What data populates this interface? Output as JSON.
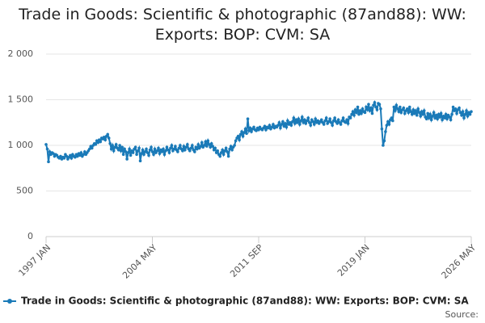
{
  "chart_data": {
    "type": "line",
    "title": "Trade in Goods: Scientific & photographic (87and88): WW: Exports: BOP: CVM: SA",
    "source": "Source:",
    "categories": [
      "1997 JAN",
      null,
      null,
      null,
      null,
      null,
      null,
      null,
      null,
      null,
      null,
      null,
      null,
      null,
      null,
      null,
      null,
      null,
      null,
      null,
      null,
      null,
      null,
      null,
      null,
      null,
      null,
      null,
      null,
      null,
      null,
      null,
      null,
      null,
      null,
      null,
      null,
      null,
      null,
      null,
      null,
      null,
      null,
      null,
      null,
      null,
      null,
      null,
      null,
      null,
      null,
      null,
      null,
      null,
      null,
      null,
      null,
      null,
      null,
      null,
      null,
      null,
      null,
      null,
      null,
      null,
      null,
      null,
      null,
      null,
      null,
      null,
      null,
      null,
      null,
      null,
      null,
      null,
      null,
      null,
      null,
      null,
      null,
      null,
      null,
      null,
      null,
      null,
      "2004 MAY",
      null,
      null,
      null,
      null,
      null,
      null,
      null,
      null,
      null,
      null,
      null,
      null,
      null,
      null,
      null,
      null,
      null,
      null,
      null,
      null,
      null,
      null,
      null,
      null,
      null,
      null,
      null,
      null,
      null,
      null,
      null,
      null,
      null,
      null,
      null,
      null,
      null,
      null,
      null,
      null,
      null,
      null,
      null,
      null,
      null,
      null,
      null,
      null,
      null,
      null,
      null,
      null,
      null,
      null,
      null,
      null,
      null,
      null,
      null,
      null,
      null,
      null,
      null,
      null,
      null,
      null,
      null,
      null,
      null,
      null,
      null,
      null,
      null,
      null,
      null,
      null,
      null,
      null,
      null,
      null,
      null,
      null,
      null,
      null,
      null,
      null,
      null,
      "2011 SEP",
      null,
      null,
      null,
      null,
      null,
      null,
      null,
      null,
      null,
      null,
      null,
      null,
      null,
      null,
      null,
      null,
      null,
      null,
      null,
      null,
      null,
      null,
      null,
      null,
      null,
      null,
      null,
      null,
      null,
      null,
      null,
      null,
      null,
      null,
      null,
      null,
      null,
      null,
      null,
      null,
      null,
      null,
      null,
      null,
      null,
      null,
      null,
      null,
      null,
      null,
      null,
      null,
      null,
      null,
      null,
      null,
      null,
      null,
      null,
      null,
      null,
      null,
      null,
      null,
      null,
      null,
      null,
      null,
      null,
      null,
      null,
      null,
      null,
      null,
      null,
      null,
      null,
      null,
      null,
      null,
      null,
      null,
      null,
      null,
      null,
      null,
      null,
      "2019 JAN",
      null,
      null,
      null,
      null,
      null,
      null,
      null,
      null,
      null,
      null,
      null,
      null,
      null,
      null,
      null,
      null,
      null,
      null,
      null,
      null,
      null,
      null,
      null,
      null,
      null,
      null,
      null,
      null,
      null,
      null,
      null,
      null,
      null,
      null,
      null,
      null,
      null,
      null,
      null,
      null,
      null,
      null,
      null,
      null,
      null,
      null,
      null,
      null,
      null,
      null,
      null,
      null,
      null,
      null,
      null,
      null,
      null,
      null,
      null,
      null,
      null,
      null,
      null,
      null,
      null,
      null,
      null,
      null,
      null,
      null,
      null,
      null,
      null,
      null,
      null,
      null,
      null,
      null,
      null,
      null,
      null,
      null,
      null,
      null,
      null,
      null,
      null,
      "2026 MAY"
    ],
    "series": [
      {
        "name": "Trade in Goods: Scientific & photographic (87and88): WW: Exports: BOP: CVM: SA",
        "color": "#1a7ab8",
        "values": [
          1010,
          960,
          820,
          930,
          900,
          920,
          910,
          880,
          900,
          890,
          870,
          860,
          880,
          850,
          870,
          860,
          900,
          880,
          850,
          870,
          890,
          860,
          900,
          880,
          870,
          900,
          880,
          910,
          890,
          920,
          880,
          900,
          930,
          900,
          920,
          940,
          960,
          990,
          970,
          1000,
          1020,
          1010,
          1050,
          1030,
          1060,
          1040,
          1080,
          1070,
          1090,
          1060,
          1100,
          1120,
          1080,
          1020,
          960,
          1000,
          940,
          980,
          1010,
          970,
          950,
          1000,
          940,
          980,
          900,
          960,
          930,
          850,
          920,
          960,
          890,
          940,
          920,
          960,
          980,
          900,
          940,
          970,
          830,
          910,
          950,
          900,
          930,
          960,
          920,
          890,
          950,
          980,
          930,
          900,
          960,
          920,
          940,
          970,
          910,
          950,
          930,
          960,
          900,
          940,
          980,
          950,
          920,
          970,
          1000,
          940,
          960,
          990,
          950,
          930,
          970,
          1000,
          960,
          940,
          990,
          950,
          980,
          1010,
          960,
          940,
          970,
          1000,
          950,
          930,
          980,
          960,
          1010,
          970,
          990,
          1030,
          980,
          1000,
          1040,
          990,
          1050,
          1010,
          980,
          1020,
          990,
          950,
          970,
          920,
          940,
          900,
          880,
          920,
          950,
          900,
          940,
          970,
          930,
          880,
          960,
          990,
          950,
          980,
          1000,
          1050,
          1080,
          1100,
          1060,
          1120,
          1150,
          1100,
          1140,
          1180,
          1130,
          1290,
          1160,
          1190,
          1150,
          1180,
          1200,
          1170,
          1160,
          1190,
          1170,
          1200,
          1180,
          1170,
          1190,
          1210,
          1170,
          1200,
          1190,
          1220,
          1180,
          1200,
          1230,
          1190,
          1210,
          1200,
          1220,
          1250,
          1190,
          1230,
          1260,
          1210,
          1240,
          1200,
          1270,
          1230,
          1250,
          1220,
          1260,
          1300,
          1240,
          1280,
          1250,
          1290,
          1230,
          1270,
          1310,
          1250,
          1280,
          1240,
          1270,
          1300,
          1250,
          1220,
          1280,
          1260,
          1230,
          1290,
          1250,
          1270,
          1240,
          1260,
          1280,
          1250,
          1230,
          1270,
          1300,
          1240,
          1260,
          1290,
          1250,
          1220,
          1270,
          1300,
          1260,
          1240,
          1280,
          1250,
          1230,
          1270,
          1300,
          1260,
          1250,
          1280,
          1240,
          1310,
          1300,
          1340,
          1370,
          1330,
          1390,
          1360,
          1420,
          1340,
          1380,
          1350,
          1400,
          1370,
          1360,
          1420,
          1390,
          1450,
          1380,
          1410,
          1350,
          1440,
          1470,
          1420,
          1390,
          1460,
          1450,
          1400,
          1180,
          1000,
          1050,
          1150,
          1220,
          1260,
          1230,
          1280,
          1300,
          1270,
          1420,
          1380,
          1440,
          1400,
          1370,
          1420,
          1360,
          1390,
          1410,
          1350,
          1380,
          1400,
          1360,
          1420,
          1370,
          1340,
          1390,
          1350,
          1380,
          1330,
          1400,
          1360,
          1320,
          1370,
          1340,
          1380,
          1310,
          1290,
          1350,
          1300,
          1340,
          1280,
          1320,
          1360,
          1300,
          1330,
          1290,
          1340,
          1310,
          1350,
          1280,
          1320,
          1300,
          1340,
          1290,
          1330,
          1310,
          1280,
          1340,
          1420,
          1380,
          1400,
          1350,
          1390,
          1410,
          1360,
          1330,
          1370,
          1300,
          1340,
          1380,
          1320,
          1360,
          1340,
          1370
        ]
      }
    ],
    "ylim": [
      0,
      2000
    ],
    "yticks": [
      0,
      500,
      {
        "value": 1000,
        "label": "1 000"
      },
      {
        "value": 1500,
        "label": "1 500"
      },
      {
        "value": 2000,
        "label": "2 000"
      }
    ],
    "grid": true
  }
}
